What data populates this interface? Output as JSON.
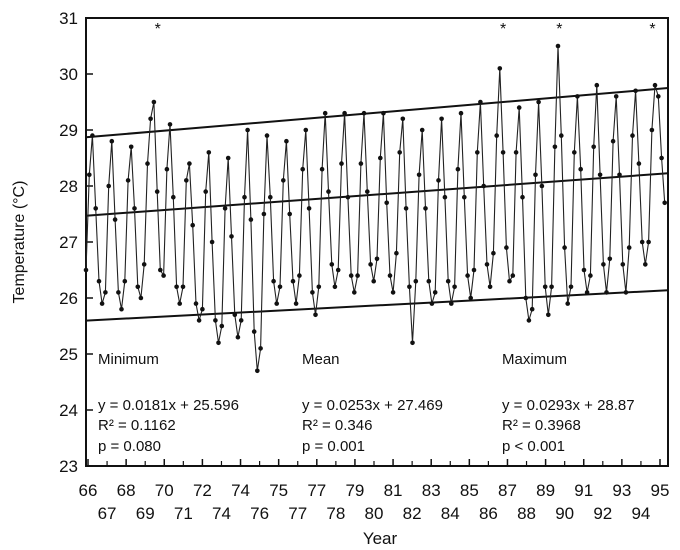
{
  "chart_data": {
    "type": "line",
    "title": "",
    "xlabel": "Year",
    "ylabel": "Temperature (°C)",
    "ylim": [
      23,
      31
    ],
    "xlim": [
      1966,
      1996
    ],
    "y_ticks": [
      23,
      24,
      25,
      26,
      27,
      28,
      29,
      30,
      31
    ],
    "x_ticks_upper": [
      "66",
      "68",
      "70",
      "72",
      "74",
      "75",
      "77",
      "79",
      "81",
      "83",
      "85",
      "87",
      "89",
      "91",
      "93",
      "95"
    ],
    "x_ticks_lower": [
      "67",
      "69",
      "71",
      "74",
      "76",
      "77",
      "78",
      "80",
      "82",
      "84",
      "86",
      "88",
      "90",
      "92",
      "94"
    ],
    "series": [
      {
        "x": [
          1966.0,
          1966.17,
          1966.33,
          1966.5,
          1966.67,
          1966.83,
          1967.0,
          1967.17,
          1967.33,
          1967.5,
          1967.67,
          1967.83,
          1968.0,
          1968.17,
          1968.33,
          1968.5,
          1968.67,
          1968.83,
          1969.0,
          1969.17,
          1969.33,
          1969.5,
          1969.67,
          1969.83,
          1970.0,
          1970.17,
          1970.33,
          1970.5,
          1970.67,
          1970.83,
          1971.0,
          1971.17,
          1971.33,
          1971.5,
          1971.67,
          1971.83,
          1972.0,
          1972.17,
          1972.33,
          1972.5,
          1972.67,
          1972.83,
          1973.0,
          1973.17,
          1973.33,
          1973.5,
          1973.67,
          1973.83,
          1974.0,
          1974.17,
          1974.33,
          1974.5,
          1974.67,
          1974.83,
          1975.0,
          1975.17,
          1975.33,
          1975.5,
          1975.67,
          1975.83,
          1976.0,
          1976.17,
          1976.33,
          1976.5,
          1976.67,
          1976.83,
          1977.0,
          1977.17,
          1977.33,
          1977.5,
          1977.67,
          1977.83,
          1978.0,
          1978.17,
          1978.33,
          1978.5,
          1978.67,
          1978.83,
          1979.0,
          1979.17,
          1979.33,
          1979.5,
          1979.67,
          1979.83,
          1980.0,
          1980.17,
          1980.33,
          1980.5,
          1980.67,
          1980.83,
          1981.0,
          1981.17,
          1981.33,
          1981.5,
          1981.67,
          1981.83,
          1982.0,
          1982.17,
          1982.33,
          1982.5,
          1982.67,
          1982.83,
          1983.0,
          1983.17,
          1983.33,
          1983.5,
          1983.67,
          1983.83,
          1984.0,
          1984.17,
          1984.33,
          1984.5,
          1984.67,
          1984.83,
          1985.0,
          1985.17,
          1985.33,
          1985.5,
          1985.67,
          1985.83,
          1986.0,
          1986.17,
          1986.33,
          1986.5,
          1986.67,
          1986.83,
          1987.0,
          1987.17,
          1987.33,
          1987.5,
          1987.67,
          1987.83,
          1988.0,
          1988.17,
          1988.33,
          1988.5,
          1988.67,
          1988.83,
          1989.0,
          1989.17,
          1989.33,
          1989.5,
          1989.67,
          1989.83,
          1990.0,
          1990.17,
          1990.33,
          1990.5,
          1990.67,
          1990.83,
          1991.0,
          1991.17,
          1991.33,
          1991.5,
          1991.67,
          1991.83,
          1992.0,
          1992.17,
          1992.33,
          1992.5,
          1992.67,
          1992.83,
          1993.0,
          1993.17,
          1993.33,
          1993.5,
          1993.67,
          1993.83,
          1994.0,
          1994.17,
          1994.33,
          1994.5,
          1994.67,
          1994.83,
          1995.0,
          1995.17,
          1995.33,
          1995.5,
          1995.67,
          1995.83
        ],
        "y": [
          26.5,
          28.2,
          28.9,
          27.6,
          26.3,
          25.9,
          26.1,
          28.0,
          28.8,
          27.4,
          26.1,
          25.8,
          26.3,
          28.1,
          28.7,
          27.6,
          26.2,
          26.0,
          26.6,
          28.4,
          29.2,
          29.5,
          27.9,
          26.5,
          26.4,
          28.3,
          29.1,
          27.8,
          26.2,
          25.9,
          26.2,
          28.1,
          28.4,
          27.3,
          25.9,
          25.6,
          25.8,
          27.9,
          28.6,
          27.0,
          25.6,
          25.2,
          25.5,
          27.6,
          28.5,
          27.1,
          25.7,
          25.3,
          25.6,
          27.8,
          29.0,
          27.4,
          25.4,
          24.7,
          25.1,
          27.5,
          28.9,
          27.8,
          26.3,
          25.9,
          26.2,
          28.1,
          28.8,
          27.5,
          26.3,
          25.9,
          26.4,
          28.3,
          29.0,
          27.6,
          26.1,
          25.7,
          26.2,
          28.3,
          29.3,
          27.9,
          26.6,
          26.2,
          26.5,
          28.4,
          29.3,
          27.8,
          26.4,
          26.1,
          26.4,
          28.4,
          29.3,
          27.9,
          26.6,
          26.3,
          26.7,
          28.5,
          29.3,
          27.7,
          26.4,
          26.1,
          26.8,
          28.6,
          29.2,
          27.6,
          26.2,
          25.2,
          26.3,
          28.2,
          29.0,
          27.6,
          26.3,
          25.9,
          26.1,
          28.1,
          29.2,
          27.8,
          26.3,
          25.9,
          26.2,
          28.3,
          29.3,
          27.8,
          26.4,
          26.0,
          26.5,
          28.6,
          29.5,
          28.0,
          26.6,
          26.2,
          26.8,
          28.9,
          30.1,
          28.6,
          26.9,
          26.3,
          26.4,
          28.6,
          29.4,
          27.8,
          26.0,
          25.6,
          25.8,
          28.2,
          29.5,
          28.0,
          26.2,
          25.7,
          26.2,
          28.7,
          30.5,
          28.9,
          26.9,
          25.9,
          26.2,
          28.6,
          29.6,
          28.3,
          26.5,
          26.1,
          26.4,
          28.7,
          29.8,
          28.2,
          26.6,
          26.1,
          26.7,
          28.8,
          29.6,
          28.2,
          26.6,
          26.1,
          26.9,
          28.9,
          29.7,
          28.4,
          27.0,
          26.6,
          27.0,
          29.0,
          29.8,
          29.6,
          28.5,
          27.7
        ]
      }
    ],
    "trend_lines": [
      {
        "name": "Minimum",
        "equation": "y = 0.0181x + 25.596",
        "r2": "R² = 0.1162",
        "p": "p = 0.080",
        "slope": 0.0181,
        "intercept": 25.596
      },
      {
        "name": "Mean",
        "equation": "y = 0.0253x + 27.469",
        "r2": "R² = 0.346",
        "p": "p = 0.001",
        "slope": 0.0253,
        "intercept": 27.469
      },
      {
        "name": "Maximum",
        "equation": "y = 0.0293x + 28.87",
        "r2": "R² = 0.3968",
        "p": "p < 0.001",
        "slope": 0.0293,
        "intercept": 28.87
      }
    ],
    "stars": [
      {
        "x": 1969.7,
        "label": "*"
      },
      {
        "x": 1987.5,
        "label": "*"
      },
      {
        "x": 1990.4,
        "label": "*"
      },
      {
        "x": 1995.2,
        "label": "*"
      }
    ]
  }
}
